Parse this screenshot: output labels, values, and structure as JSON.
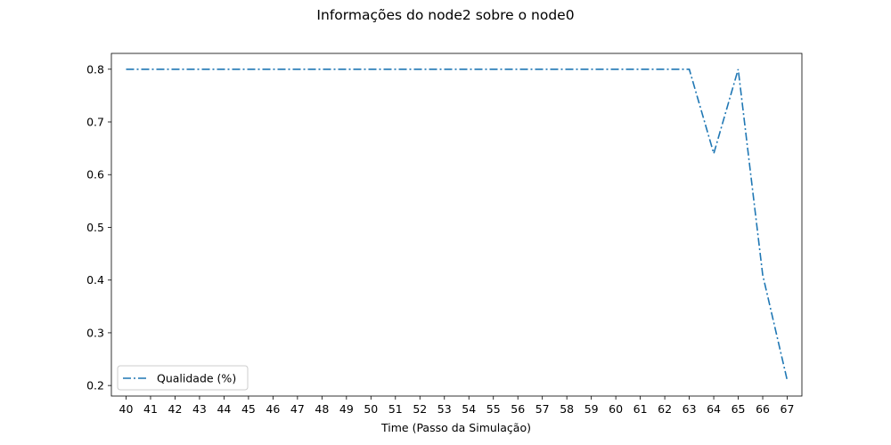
{
  "chart_data": {
    "type": "line",
    "title": "Informações do node2 sobre o node0",
    "xlabel": "Time (Passo da Simulação)",
    "ylabel": "",
    "x": [
      40,
      41,
      42,
      43,
      44,
      45,
      46,
      47,
      48,
      49,
      50,
      51,
      52,
      53,
      54,
      55,
      56,
      57,
      58,
      59,
      60,
      61,
      62,
      63,
      64,
      65,
      66,
      67
    ],
    "xticks": [
      "40",
      "41",
      "42",
      "43",
      "44",
      "45",
      "46",
      "47",
      "48",
      "49",
      "50",
      "51",
      "52",
      "53",
      "54",
      "55",
      "56",
      "57",
      "58",
      "59",
      "60",
      "61",
      "62",
      "63",
      "64",
      "65",
      "66",
      "67"
    ],
    "yticks": [
      "0.2",
      "0.3",
      "0.4",
      "0.5",
      "0.6",
      "0.7",
      "0.8"
    ],
    "ylim": [
      0.18,
      0.83
    ],
    "xlim": [
      39.4,
      67.6
    ],
    "legend_position": "lower-left",
    "grid": false,
    "series": [
      {
        "name": "Qualidade (%)",
        "color": "#1f77b4",
        "line_style": "dash-dot",
        "values": [
          0.8,
          0.8,
          0.8,
          0.8,
          0.8,
          0.8,
          0.8,
          0.8,
          0.8,
          0.8,
          0.8,
          0.8,
          0.8,
          0.8,
          0.8,
          0.8,
          0.8,
          0.8,
          0.8,
          0.8,
          0.8,
          0.8,
          0.8,
          0.8,
          0.64,
          0.8,
          0.41,
          0.21
        ]
      }
    ]
  }
}
